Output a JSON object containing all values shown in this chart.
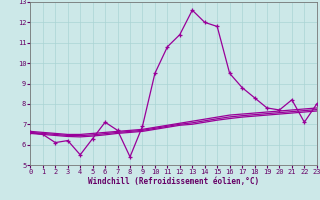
{
  "xlabel": "Windchill (Refroidissement éolien,°C)",
  "hours": [
    0,
    1,
    2,
    3,
    4,
    5,
    6,
    7,
    8,
    9,
    10,
    11,
    12,
    13,
    14,
    15,
    16,
    17,
    18,
    19,
    20,
    21,
    22,
    23
  ],
  "main_line": [
    6.6,
    6.5,
    6.1,
    6.2,
    5.5,
    6.3,
    7.1,
    6.7,
    5.4,
    6.9,
    9.5,
    10.8,
    11.4,
    12.6,
    12.0,
    11.8,
    9.5,
    8.8,
    8.3,
    7.8,
    7.7,
    8.2,
    7.1,
    8.0
  ],
  "trend1": [
    6.65,
    6.6,
    6.55,
    6.5,
    6.5,
    6.55,
    6.6,
    6.65,
    6.7,
    6.75,
    6.85,
    6.95,
    7.05,
    7.15,
    7.25,
    7.35,
    7.45,
    7.5,
    7.55,
    7.6,
    7.65,
    7.7,
    7.75,
    7.8
  ],
  "trend2": [
    6.55,
    6.5,
    6.45,
    6.4,
    6.38,
    6.42,
    6.48,
    6.55,
    6.6,
    6.65,
    6.75,
    6.85,
    6.95,
    7.0,
    7.1,
    7.2,
    7.28,
    7.35,
    7.4,
    7.45,
    7.5,
    7.55,
    7.6,
    7.65
  ],
  "trend3": [
    6.6,
    6.55,
    6.5,
    6.45,
    6.44,
    6.48,
    6.54,
    6.6,
    6.65,
    6.7,
    6.8,
    6.9,
    7.0,
    7.07,
    7.17,
    7.27,
    7.36,
    7.42,
    7.47,
    7.52,
    7.57,
    7.62,
    7.67,
    7.72
  ],
  "line_color": "#990099",
  "bg_color": "#cce8e8",
  "grid_color": "#aad4d4",
  "ylim": [
    5,
    13
  ],
  "xlim": [
    0,
    23
  ],
  "yticks": [
    5,
    6,
    7,
    8,
    9,
    10,
    11,
    12,
    13
  ],
  "xticks": [
    0,
    1,
    2,
    3,
    4,
    5,
    6,
    7,
    8,
    9,
    10,
    11,
    12,
    13,
    14,
    15,
    16,
    17,
    18,
    19,
    20,
    21,
    22,
    23
  ],
  "tick_fontsize": 5.0,
  "xlabel_fontsize": 5.5
}
